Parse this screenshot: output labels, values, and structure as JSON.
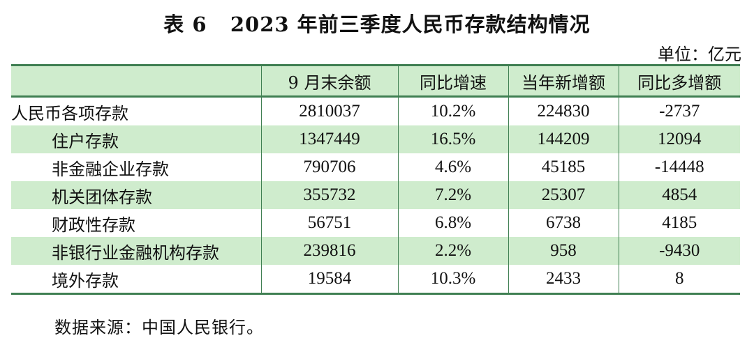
{
  "title": {
    "prefix": "表 6",
    "text": "2023 年前三季度人民币存款结构情况"
  },
  "unit": "单位：亿元",
  "table": {
    "headers": [
      "",
      "9 月末余额",
      "同比增速",
      "当年新增额",
      "同比多增额"
    ],
    "rows": [
      {
        "label": "人民币各项存款",
        "balance": "2810037",
        "yoy": "10.2%",
        "new": "224830",
        "more": "-2737"
      },
      {
        "label": "住户存款",
        "balance": "1347449",
        "yoy": "16.5%",
        "new": "144209",
        "more": "12094"
      },
      {
        "label": "非金融企业存款",
        "balance": "790706",
        "yoy": "4.6%",
        "new": "45185",
        "more": "-14448"
      },
      {
        "label": "机关团体存款",
        "balance": "355732",
        "yoy": "7.2%",
        "new": "25307",
        "more": "4854"
      },
      {
        "label": "财政性存款",
        "balance": "56751",
        "yoy": "6.8%",
        "new": "6738",
        "more": "4185"
      },
      {
        "label": "非银行业金融机构存款",
        "balance": "239816",
        "yoy": "2.2%",
        "new": "958",
        "more": "-9430"
      },
      {
        "label": "境外存款",
        "balance": "19584",
        "yoy": "10.3%",
        "new": "2433",
        "more": "8"
      }
    ]
  },
  "source": "数据来源：中国人民银行。",
  "colors": {
    "header_fill": "#cfeccd",
    "rule": "#3f7f52"
  }
}
